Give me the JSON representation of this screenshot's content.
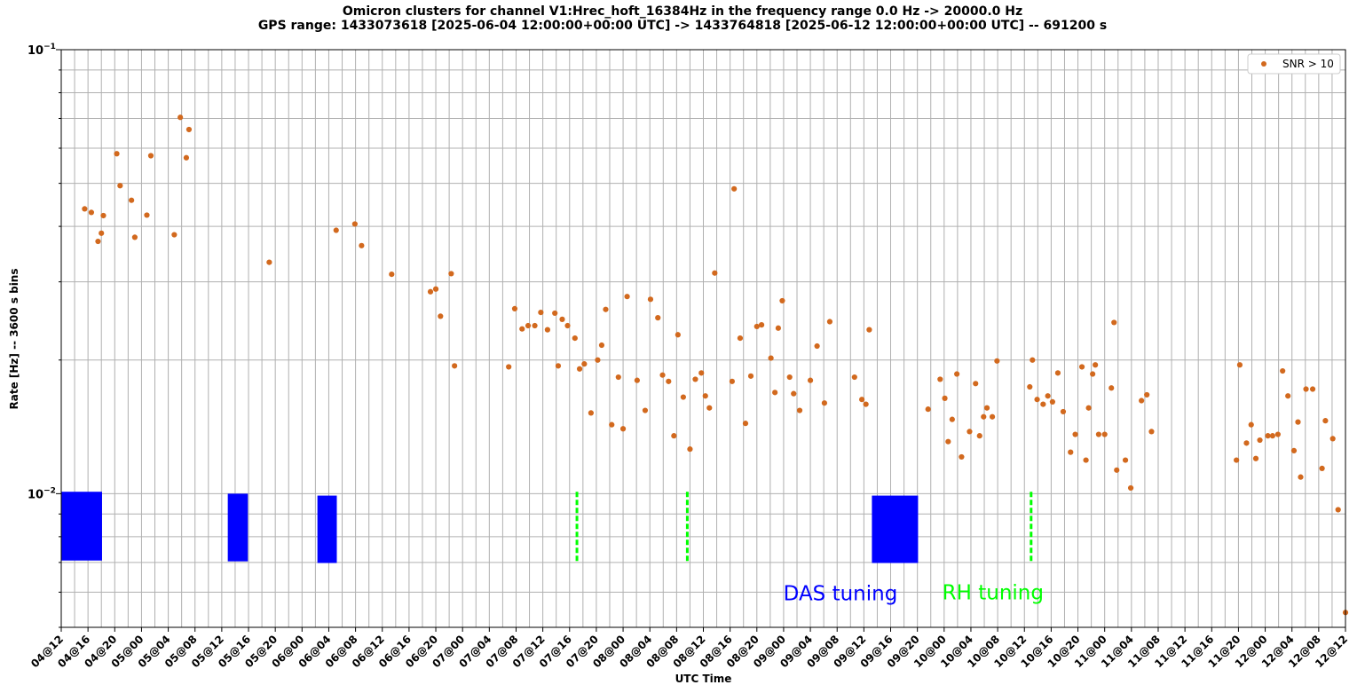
{
  "chart_data": {
    "type": "scatter",
    "title": "Omicron clusters for channel V1:Hrec_hoft_16384Hz in the frequency range 0.0 Hz -> 20000.0 Hz",
    "subtitle": "GPS range: 1433073618 [2025-06-04 12:00:00+00:00 UTC] -> 1433764818 [2025-06-12 12:00:00+00:00 UTC] -- 691200 s",
    "xlabel": "UTC Time",
    "ylabel": "Rate [Hz] -- 3600 s bins",
    "y_scale": "log",
    "ylim": [
      0.005,
      0.1
    ],
    "xlim": [
      0,
      192
    ],
    "x_unit": "hours since 04@12",
    "grid": true,
    "legend_position": "top-right",
    "x_tick_labels": [
      "04@12",
      "04@16",
      "04@20",
      "05@00",
      "05@04",
      "05@08",
      "05@12",
      "05@16",
      "05@20",
      "06@00",
      "06@04",
      "06@08",
      "06@12",
      "06@16",
      "06@20",
      "07@00",
      "07@04",
      "07@08",
      "07@12",
      "07@16",
      "07@20",
      "08@00",
      "08@04",
      "08@08",
      "08@12",
      "08@16",
      "08@20",
      "09@00",
      "09@04",
      "09@08",
      "09@12",
      "09@16",
      "09@20",
      "10@00",
      "10@04",
      "10@08",
      "10@12",
      "10@16",
      "10@20",
      "11@00",
      "11@04",
      "11@08",
      "11@12",
      "11@16",
      "11@20",
      "12@00",
      "12@04",
      "12@08",
      "12@12"
    ],
    "y_tick_labels": [
      {
        "value": 0.1,
        "base": "10",
        "exp": "−1"
      },
      {
        "value": 0.01,
        "base": "10",
        "exp": "−2"
      }
    ],
    "series": [
      {
        "name": "SNR > 10",
        "color": "#d2691e",
        "points": [
          [
            3.5,
            0.0438
          ],
          [
            4.5,
            0.043
          ],
          [
            5.5,
            0.037
          ],
          [
            6,
            0.0386
          ],
          [
            6.3,
            0.0423
          ],
          [
            8.3,
            0.0583
          ],
          [
            8.8,
            0.0494
          ],
          [
            10.5,
            0.0458
          ],
          [
            11,
            0.0378
          ],
          [
            12.8,
            0.0424
          ],
          [
            13.4,
            0.0577
          ],
          [
            16.9,
            0.0383
          ],
          [
            17.8,
            0.0704
          ],
          [
            18.7,
            0.0571
          ],
          [
            19.1,
            0.0661
          ],
          [
            31.1,
            0.0332
          ],
          [
            41.1,
            0.0392
          ],
          [
            43.9,
            0.0405
          ],
          [
            44.9,
            0.0362
          ],
          [
            49.4,
            0.0312
          ],
          [
            55.2,
            0.0285
          ],
          [
            56,
            0.0289
          ],
          [
            56.7,
            0.0251
          ],
          [
            58.3,
            0.0313
          ],
          [
            58.8,
            0.0194
          ],
          [
            66.9,
            0.0193
          ],
          [
            67.8,
            0.0261
          ],
          [
            68.9,
            0.0235
          ],
          [
            69.8,
            0.0239
          ],
          [
            70.8,
            0.0239
          ],
          [
            71.7,
            0.0256
          ],
          [
            72.7,
            0.0234
          ],
          [
            73.8,
            0.0255
          ],
          [
            74.3,
            0.0194
          ],
          [
            74.9,
            0.0247
          ],
          [
            75.7,
            0.0239
          ],
          [
            76.8,
            0.0224
          ],
          [
            77.5,
            0.0191
          ],
          [
            78.2,
            0.0196
          ],
          [
            79.2,
            0.0152
          ],
          [
            80.2,
            0.02
          ],
          [
            80.8,
            0.0216
          ],
          [
            81.4,
            0.026
          ],
          [
            82.3,
            0.0143
          ],
          [
            83.3,
            0.0183
          ],
          [
            84,
            0.014
          ],
          [
            84.6,
            0.0278
          ],
          [
            86.1,
            0.018
          ],
          [
            87.3,
            0.0154
          ],
          [
            88.1,
            0.0274
          ],
          [
            89.2,
            0.0249
          ],
          [
            89.9,
            0.0185
          ],
          [
            90.8,
            0.0179
          ],
          [
            91.6,
            0.0135
          ],
          [
            92.2,
            0.0228
          ],
          [
            93,
            0.0165
          ],
          [
            94,
            0.0126
          ],
          [
            94.8,
            0.0181
          ],
          [
            95.7,
            0.0187
          ],
          [
            96.3,
            0.0166
          ],
          [
            96.9,
            0.0156
          ],
          [
            97.7,
            0.0314
          ],
          [
            100.3,
            0.0179
          ],
          [
            100.6,
            0.0486
          ],
          [
            101.5,
            0.0224
          ],
          [
            102.3,
            0.0144
          ],
          [
            103.1,
            0.0184
          ],
          [
            104,
            0.0238
          ],
          [
            104.7,
            0.024
          ],
          [
            106.1,
            0.0202
          ],
          [
            106.7,
            0.0169
          ],
          [
            107.2,
            0.0236
          ],
          [
            107.8,
            0.0272
          ],
          [
            108.9,
            0.0183
          ],
          [
            109.5,
            0.0168
          ],
          [
            110.4,
            0.0154
          ],
          [
            112,
            0.018
          ],
          [
            113,
            0.0215
          ],
          [
            114.1,
            0.016
          ],
          [
            114.9,
            0.0244
          ],
          [
            118.6,
            0.0183
          ],
          [
            119.7,
            0.0163
          ],
          [
            120.3,
            0.0159
          ],
          [
            120.8,
            0.0234
          ],
          [
            129.6,
            0.0155
          ],
          [
            131.4,
            0.0181
          ],
          [
            132.1,
            0.0164
          ],
          [
            132.6,
            0.0131
          ],
          [
            133.2,
            0.0147
          ],
          [
            133.9,
            0.0186
          ],
          [
            134.6,
            0.0121
          ],
          [
            135.8,
            0.0138
          ],
          [
            136.7,
            0.0177
          ],
          [
            137.3,
            0.0135
          ],
          [
            137.9,
            0.0149
          ],
          [
            138.4,
            0.0156
          ],
          [
            139.2,
            0.0149
          ],
          [
            139.9,
            0.0199
          ],
          [
            144.8,
            0.0174
          ],
          [
            145.2,
            0.02
          ],
          [
            145.9,
            0.0163
          ],
          [
            146.8,
            0.0159
          ],
          [
            147.5,
            0.0166
          ],
          [
            148.2,
            0.0161
          ],
          [
            149,
            0.0187
          ],
          [
            149.8,
            0.0153
          ],
          [
            150.9,
            0.0124
          ],
          [
            151.6,
            0.0136
          ],
          [
            152.6,
            0.0193
          ],
          [
            153.2,
            0.0119
          ],
          [
            153.6,
            0.0156
          ],
          [
            154.2,
            0.0186
          ],
          [
            154.6,
            0.0195
          ],
          [
            155.1,
            0.0136
          ],
          [
            156,
            0.0136
          ],
          [
            157,
            0.0173
          ],
          [
            157.4,
            0.0243
          ],
          [
            157.8,
            0.0113
          ],
          [
            159.1,
            0.0119
          ],
          [
            159.9,
            0.0103
          ],
          [
            161.5,
            0.0162
          ],
          [
            162.3,
            0.0167
          ],
          [
            163,
            0.0138
          ],
          [
            175.7,
            0.0119
          ],
          [
            176.2,
            0.0195
          ],
          [
            177.2,
            0.013
          ],
          [
            177.9,
            0.0143
          ],
          [
            178.6,
            0.012
          ],
          [
            179.2,
            0.0132
          ],
          [
            180.4,
            0.0135
          ],
          [
            181.1,
            0.0135
          ],
          [
            181.9,
            0.0136
          ],
          [
            182.6,
            0.0189
          ],
          [
            183.4,
            0.0166
          ],
          [
            184.3,
            0.0125
          ],
          [
            184.9,
            0.0145
          ],
          [
            185.3,
            0.0109
          ],
          [
            186.1,
            0.0172
          ],
          [
            187.1,
            0.0172
          ],
          [
            188.5,
            0.0114
          ],
          [
            189,
            0.0146
          ],
          [
            190.1,
            0.0133
          ],
          [
            190.9,
            0.0092
          ],
          [
            192,
            0.0054
          ]
        ]
      }
    ],
    "das_tuning": {
      "color": "#0000ff",
      "spans": [
        [
          0,
          6.1,
          0.0101,
          0.00707
        ],
        [
          24.9,
          27.9,
          0.01,
          0.00704
        ],
        [
          38.3,
          41.2,
          0.0099,
          0.00698
        ],
        [
          121.2,
          128.1,
          0.0099,
          0.00698
        ]
      ]
    },
    "rh_tuning": {
      "color": "#00ff00",
      "lines": [
        [
          77.1,
          0.0101,
          0.00698
        ],
        [
          93.6,
          0.0101,
          0.00698
        ],
        [
          145,
          0.0101,
          0.00698
        ]
      ]
    },
    "annotations": [
      {
        "text": "DAS tuning",
        "color": "#0000ff",
        "x": 116.5,
        "y": 0.00575
      },
      {
        "text": "RH tuning",
        "color": "#00ff00",
        "x": 139.3,
        "y": 0.00578
      }
    ]
  }
}
